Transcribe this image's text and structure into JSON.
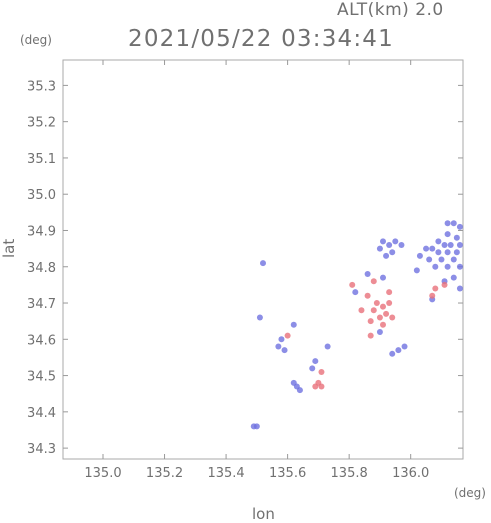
{
  "header": {
    "alt_label": "ALT(km) 2.0",
    "timestamp": "2021/05/22 03:34:41"
  },
  "colors": {
    "positive": "#e8707a",
    "negative": "#6f72e0",
    "axis": "#999999"
  },
  "chart_data": {
    "type": "scatter",
    "title": "",
    "xlabel": "lon",
    "ylabel": "lat",
    "x_unit": "(deg)",
    "y_unit": "(deg)",
    "xlim": [
      134.87,
      136.17
    ],
    "ylim": [
      34.27,
      35.37
    ],
    "xticks": [
      135.0,
      135.2,
      135.4,
      135.6,
      135.8,
      136.0
    ],
    "xtick_labels": [
      "135.0",
      "135.2",
      "135.4",
      "135.6",
      "135.8",
      "136.0"
    ],
    "yticks": [
      34.3,
      34.4,
      34.5,
      34.6,
      34.7,
      34.8,
      34.9,
      35.0,
      35.1,
      35.2,
      35.3
    ],
    "ytick_labels": [
      "34.3",
      "34.4",
      "34.5",
      "34.6",
      "34.7",
      "34.8",
      "34.9",
      "35.0",
      "35.1",
      "35.2",
      "35.3"
    ],
    "grid": false,
    "series": [
      {
        "color_key": "negative",
        "points": [
          [
            136.12,
            34.92
          ],
          [
            136.14,
            34.92
          ],
          [
            136.16,
            34.91
          ],
          [
            136.12,
            34.89
          ],
          [
            136.15,
            34.88
          ],
          [
            136.09,
            34.87
          ],
          [
            136.11,
            34.86
          ],
          [
            136.13,
            34.86
          ],
          [
            136.16,
            34.86
          ],
          [
            136.05,
            34.85
          ],
          [
            136.07,
            34.85
          ],
          [
            136.09,
            34.84
          ],
          [
            136.12,
            34.84
          ],
          [
            136.15,
            34.84
          ],
          [
            136.03,
            34.83
          ],
          [
            136.06,
            34.82
          ],
          [
            136.1,
            34.82
          ],
          [
            136.14,
            34.82
          ],
          [
            136.08,
            34.8
          ],
          [
            136.12,
            34.8
          ],
          [
            136.16,
            34.8
          ],
          [
            136.02,
            34.79
          ],
          [
            136.14,
            34.77
          ],
          [
            136.11,
            34.76
          ],
          [
            136.16,
            34.74
          ],
          [
            136.07,
            34.71
          ],
          [
            135.91,
            34.87
          ],
          [
            135.93,
            34.86
          ],
          [
            135.95,
            34.87
          ],
          [
            135.97,
            34.86
          ],
          [
            135.9,
            34.85
          ],
          [
            135.94,
            34.84
          ],
          [
            135.92,
            34.83
          ],
          [
            135.91,
            34.77
          ],
          [
            135.86,
            34.78
          ],
          [
            135.82,
            34.73
          ],
          [
            135.52,
            34.81
          ],
          [
            135.51,
            34.66
          ],
          [
            135.58,
            34.6
          ],
          [
            135.57,
            34.58
          ],
          [
            135.59,
            34.57
          ],
          [
            135.62,
            34.64
          ],
          [
            135.63,
            34.47
          ],
          [
            135.64,
            34.46
          ],
          [
            135.62,
            34.48
          ],
          [
            135.73,
            34.58
          ],
          [
            135.69,
            34.54
          ],
          [
            135.68,
            34.52
          ],
          [
            135.98,
            34.58
          ],
          [
            135.96,
            34.57
          ],
          [
            135.94,
            34.56
          ],
          [
            135.49,
            34.36
          ],
          [
            135.5,
            34.36
          ],
          [
            135.9,
            34.62
          ]
        ]
      },
      {
        "color_key": "positive",
        "points": [
          [
            135.7,
            34.48
          ],
          [
            135.71,
            34.47
          ],
          [
            135.69,
            34.47
          ],
          [
            135.89,
            34.7
          ],
          [
            135.91,
            34.69
          ],
          [
            135.93,
            34.7
          ],
          [
            135.88,
            34.68
          ],
          [
            135.92,
            34.67
          ],
          [
            135.9,
            34.66
          ],
          [
            135.94,
            34.66
          ],
          [
            135.87,
            34.65
          ],
          [
            135.91,
            34.64
          ],
          [
            135.86,
            34.72
          ],
          [
            135.93,
            34.73
          ],
          [
            135.84,
            34.68
          ],
          [
            135.87,
            34.61
          ],
          [
            136.08,
            34.74
          ],
          [
            136.11,
            34.75
          ],
          [
            136.07,
            34.72
          ],
          [
            135.81,
            34.75
          ],
          [
            135.88,
            34.76
          ],
          [
            135.71,
            34.51
          ],
          [
            135.6,
            34.61
          ]
        ]
      }
    ]
  }
}
